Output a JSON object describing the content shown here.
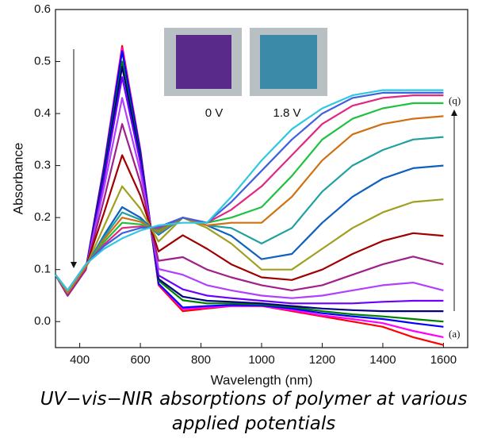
{
  "chart_data": {
    "type": "line",
    "x_label": "Wavelength (nm)",
    "y_label": "Absorbance",
    "caption": "UV−vis−NIR absorptions of polymer at various applied potentials",
    "annotations": {
      "start": "(a)",
      "end": "(q)",
      "inset_left": "0 V",
      "inset_right": "1.8 V"
    },
    "xlim": [
      320,
      1680
    ],
    "ylim": [
      -0.05,
      0.6
    ],
    "xticks": [
      400,
      600,
      800,
      1000,
      1200,
      1400,
      1600
    ],
    "yticks": [
      {
        "value": 0,
        "label": "0.0"
      },
      0.1,
      0.2,
      0.3,
      0.4,
      0.5,
      0.6
    ],
    "x": [
      320,
      360,
      420,
      480,
      540,
      600,
      660,
      740,
      820,
      900,
      1000,
      1100,
      1200,
      1300,
      1400,
      1500,
      1600
    ],
    "series": [
      {
        "color": "#ff0000",
        "values": [
          0.09,
          0.05,
          0.1,
          0.3,
          0.53,
          0.33,
          0.07,
          0.02,
          0.025,
          0.03,
          0.03,
          0.02,
          0.01,
          0,
          -0.01,
          -0.03,
          -0.045
        ]
      },
      {
        "color": "#ff00ff",
        "values": [
          0.09,
          0.05,
          0.1,
          0.298,
          0.525,
          0.328,
          0.072,
          0.024,
          0.027,
          0.03,
          0.03,
          0.022,
          0.012,
          0.005,
          -0.003,
          -0.018,
          -0.03
        ]
      },
      {
        "color": "#0000ff",
        "values": [
          0.09,
          0.05,
          0.1,
          0.296,
          0.52,
          0.326,
          0.073,
          0.027,
          0.03,
          0.032,
          0.031,
          0.025,
          0.016,
          0.01,
          0.005,
          -0.003,
          -0.01
        ]
      },
      {
        "color": "#008000",
        "values": [
          0.09,
          0.05,
          0.1,
          0.287,
          0.5,
          0.317,
          0.079,
          0.041,
          0.035,
          0.035,
          0.033,
          0.028,
          0.02,
          0.014,
          0.01,
          0.005,
          0
        ]
      },
      {
        "color": "#000080",
        "values": [
          0.09,
          0.05,
          0.1,
          0.283,
          0.49,
          0.313,
          0.082,
          0.048,
          0.04,
          0.038,
          0.035,
          0.03,
          0.025,
          0.022,
          0.02,
          0.02,
          0.02
        ]
      },
      {
        "color": "#6a00ff",
        "values": [
          0.09,
          0.05,
          0.1,
          0.274,
          0.47,
          0.305,
          0.089,
          0.062,
          0.05,
          0.045,
          0.04,
          0.035,
          0.035,
          0.035,
          0.038,
          0.04,
          0.04
        ]
      },
      {
        "color": "#b040ff",
        "values": [
          0.09,
          0.05,
          0.1,
          0.257,
          0.43,
          0.288,
          0.101,
          0.09,
          0.07,
          0.06,
          0.05,
          0.045,
          0.05,
          0.06,
          0.07,
          0.075,
          0.06
        ]
      },
      {
        "color": "#a0208a",
        "values": [
          0.09,
          0.05,
          0.1,
          0.235,
          0.38,
          0.267,
          0.117,
          0.124,
          0.1,
          0.085,
          0.07,
          0.06,
          0.07,
          0.09,
          0.11,
          0.125,
          0.11
        ]
      },
      {
        "color": "#a00000",
        "values": [
          0.09,
          0.055,
          0.105,
          0.209,
          0.32,
          0.242,
          0.135,
          0.166,
          0.14,
          0.11,
          0.085,
          0.08,
          0.1,
          0.13,
          0.155,
          0.17,
          0.165
        ]
      },
      {
        "color": "#a0a020",
        "values": [
          0.09,
          0.055,
          0.105,
          0.183,
          0.26,
          0.217,
          0.154,
          0.2,
          0.18,
          0.15,
          0.1,
          0.1,
          0.14,
          0.18,
          0.21,
          0.23,
          0.235
        ]
      },
      {
        "color": "#1060c0",
        "values": [
          0.09,
          0.055,
          0.105,
          0.166,
          0.22,
          0.2,
          0.167,
          0.2,
          0.185,
          0.165,
          0.12,
          0.13,
          0.19,
          0.24,
          0.275,
          0.295,
          0.3
        ]
      },
      {
        "color": "#20a0a0",
        "values": [
          0.09,
          0.055,
          0.105,
          0.162,
          0.21,
          0.196,
          0.169,
          0.2,
          0.185,
          0.18,
          0.15,
          0.18,
          0.25,
          0.3,
          0.33,
          0.35,
          0.355
        ]
      },
      {
        "color": "#d07010",
        "values": [
          0.09,
          0.055,
          0.105,
          0.158,
          0.2,
          0.192,
          0.172,
          0.2,
          0.185,
          0.19,
          0.19,
          0.24,
          0.31,
          0.36,
          0.38,
          0.39,
          0.395
        ]
      },
      {
        "color": "#20c040",
        "values": [
          0.09,
          0.06,
          0.11,
          0.153,
          0.19,
          0.187,
          0.176,
          0.2,
          0.19,
          0.2,
          0.22,
          0.28,
          0.35,
          0.39,
          0.41,
          0.42,
          0.42
        ]
      },
      {
        "color": "#e02880",
        "values": [
          0.09,
          0.06,
          0.11,
          0.148,
          0.18,
          0.183,
          0.179,
          0.2,
          0.19,
          0.215,
          0.26,
          0.32,
          0.38,
          0.415,
          0.43,
          0.435,
          0.435
        ]
      },
      {
        "color": "#4060e0",
        "values": [
          0.09,
          0.06,
          0.11,
          0.145,
          0.17,
          0.18,
          0.182,
          0.2,
          0.19,
          0.23,
          0.29,
          0.35,
          0.4,
          0.43,
          0.44,
          0.44,
          0.44
        ]
      },
      {
        "color": "#30c8e0",
        "values": [
          0.09,
          0.06,
          0.11,
          0.14,
          0.16,
          0.175,
          0.185,
          0.19,
          0.19,
          0.24,
          0.31,
          0.37,
          0.41,
          0.435,
          0.445,
          0.445,
          0.445
        ]
      }
    ]
  }
}
